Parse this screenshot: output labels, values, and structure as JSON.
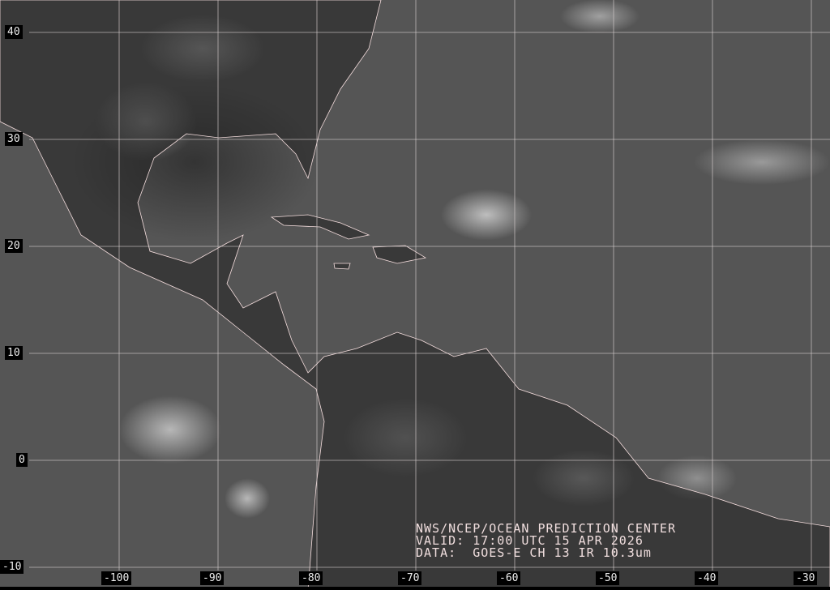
{
  "map": {
    "latitude_labels": [
      "40",
      "30",
      "20",
      "10",
      "0",
      "-10"
    ],
    "longitude_labels": [
      "-100",
      "-90",
      "-80",
      "-70",
      "-60",
      "-50",
      "-40",
      "-30"
    ],
    "grid_color": "#d8d0d0",
    "coastline_color": "#ffe8e8"
  },
  "caption": {
    "line1": "NWS/NCEP/OCEAN PREDICTION CENTER",
    "line2": "VALID: 17:00 UTC 15 APR 2026",
    "line3": "DATA:  GOES-E CH 13 IR 10.3um"
  }
}
